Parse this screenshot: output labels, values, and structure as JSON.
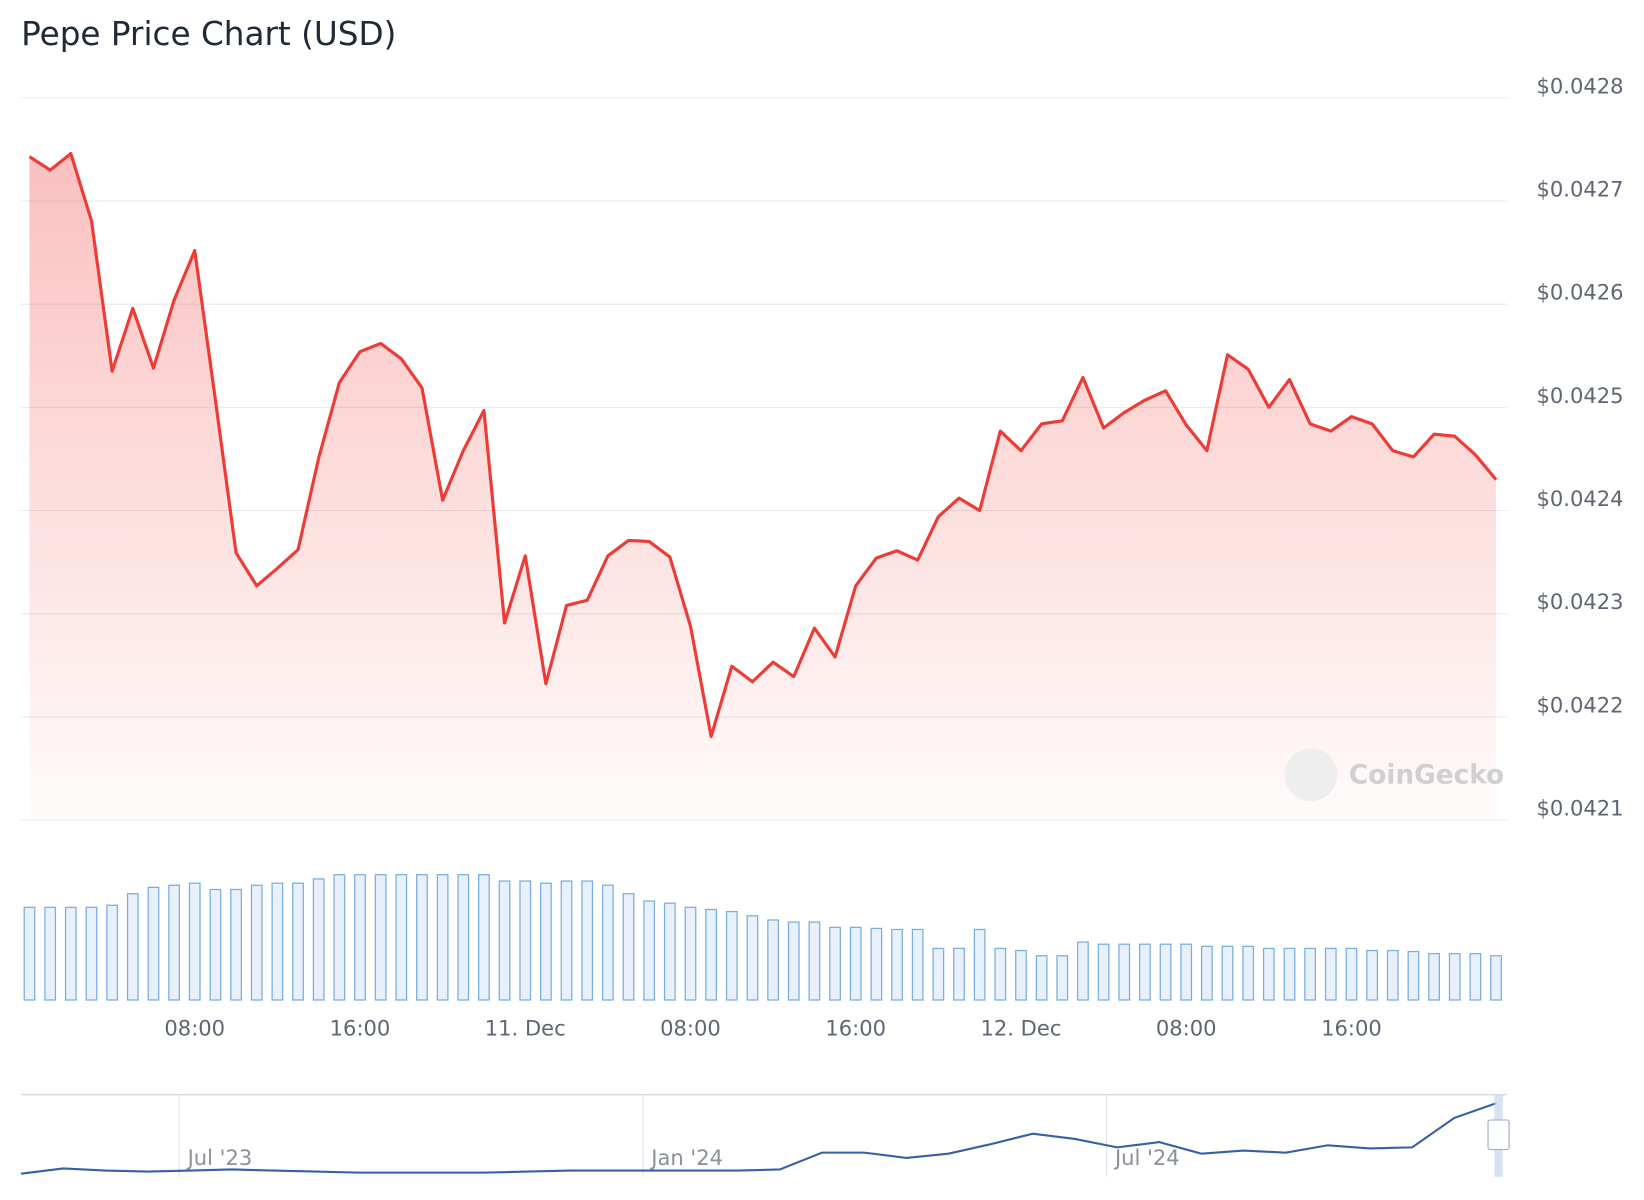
{
  "chart_data": {
    "type": "line",
    "title": "Pepe Price Chart (USD)",
    "watermark": "CoinGecko",
    "color": "#ef3b36",
    "categories": [
      null,
      null,
      null,
      null,
      null,
      null,
      null,
      null,
      "08:00",
      null,
      null,
      null,
      null,
      null,
      null,
      null,
      "16:00",
      null,
      null,
      null,
      null,
      null,
      null,
      null,
      "11. Dec",
      null,
      null,
      null,
      null,
      null,
      null,
      null,
      "08:00",
      null,
      null,
      null,
      null,
      null,
      null,
      null,
      "16:00",
      null,
      null,
      null,
      null,
      null,
      null,
      null,
      "12. Dec",
      null,
      null,
      null,
      null,
      null,
      null,
      null,
      "08:00",
      null,
      null,
      null,
      null,
      null,
      null,
      null,
      "16:00",
      null,
      null,
      null,
      null,
      null,
      null,
      null
    ],
    "values": [
      0.042743,
      0.04273,
      0.042746,
      0.042681,
      0.042535,
      0.042596,
      0.042538,
      0.042604,
      0.042652,
      0.042507,
      0.042359,
      0.042327,
      0.042344,
      0.042362,
      0.042451,
      0.042524,
      0.042554,
      0.042562,
      0.042547,
      0.042519,
      0.04241,
      0.042458,
      0.042497,
      0.042291,
      0.042356,
      0.042232,
      0.042308,
      0.042313,
      0.042356,
      0.042371,
      0.04237,
      0.042355,
      0.042288,
      0.042181,
      0.042249,
      0.042234,
      0.042253,
      0.042239,
      0.042286,
      0.042258,
      0.042327,
      0.042354,
      0.042361,
      0.042352,
      0.042394,
      0.042412,
      0.0424,
      0.042477,
      0.042458,
      0.042484,
      0.042487,
      0.042529,
      0.04248,
      0.042495,
      0.042507,
      0.042516,
      0.042483,
      0.042458,
      0.042551,
      0.042537,
      0.0425,
      0.042527,
      0.042484,
      0.042477,
      0.042491,
      0.042484,
      0.042458,
      0.042452,
      0.042474,
      0.042472,
      0.042454,
      0.04243
    ],
    "volume_color": "#7aaee0",
    "volume_values": [
      88,
      88,
      88,
      88,
      90,
      101,
      107,
      109,
      111,
      105,
      105,
      109,
      111,
      111,
      115,
      119,
      119,
      119,
      119,
      119,
      119,
      119,
      119,
      113,
      113,
      111,
      113,
      113,
      109,
      101,
      94,
      92,
      88,
      86,
      84,
      80,
      76,
      74,
      74,
      69,
      69,
      68,
      67,
      67,
      49,
      49,
      67,
      49,
      47,
      42,
      42,
      55,
      53,
      53,
      53,
      53,
      53,
      51,
      51,
      51,
      49,
      49,
      49,
      49,
      49,
      47,
      47,
      46,
      44,
      44,
      44,
      42
    ],
    "ylim": [
      0.0421,
      0.0428
    ],
    "yticks": [
      {
        "value": 0.0421,
        "label": "$0.0421"
      },
      {
        "value": 0.0422,
        "label": "$0.0422"
      },
      {
        "value": 0.0423,
        "label": "$0.0423"
      },
      {
        "value": 0.0424,
        "label": "$0.0424"
      },
      {
        "value": 0.0425,
        "label": "$0.0425"
      },
      {
        "value": 0.0426,
        "label": "$0.0426"
      },
      {
        "value": 0.0427,
        "label": "$0.0427"
      },
      {
        "value": 0.0428,
        "label": "$0.0428"
      }
    ],
    "grid": true,
    "navigator": {
      "type": "line",
      "color": "#3560a8",
      "categories": [
        null,
        null,
        null,
        null,
        "Jul '23",
        null,
        null,
        null,
        null,
        null,
        null,
        null,
        null,
        null,
        null,
        "Jan '24",
        null,
        null,
        null,
        null,
        null,
        null,
        null,
        null,
        null,
        null,
        "Jul '24",
        null,
        null,
        null,
        null,
        null,
        null,
        null,
        null,
        null
      ],
      "values": [
        0,
        5,
        3,
        2,
        3,
        4,
        3,
        2,
        1,
        1,
        1,
        1,
        2,
        3,
        3,
        3,
        3,
        3,
        4,
        20,
        20,
        15,
        19,
        28,
        38,
        33,
        25,
        30,
        19,
        22,
        20,
        27,
        24,
        25,
        53,
        67
      ]
    }
  }
}
